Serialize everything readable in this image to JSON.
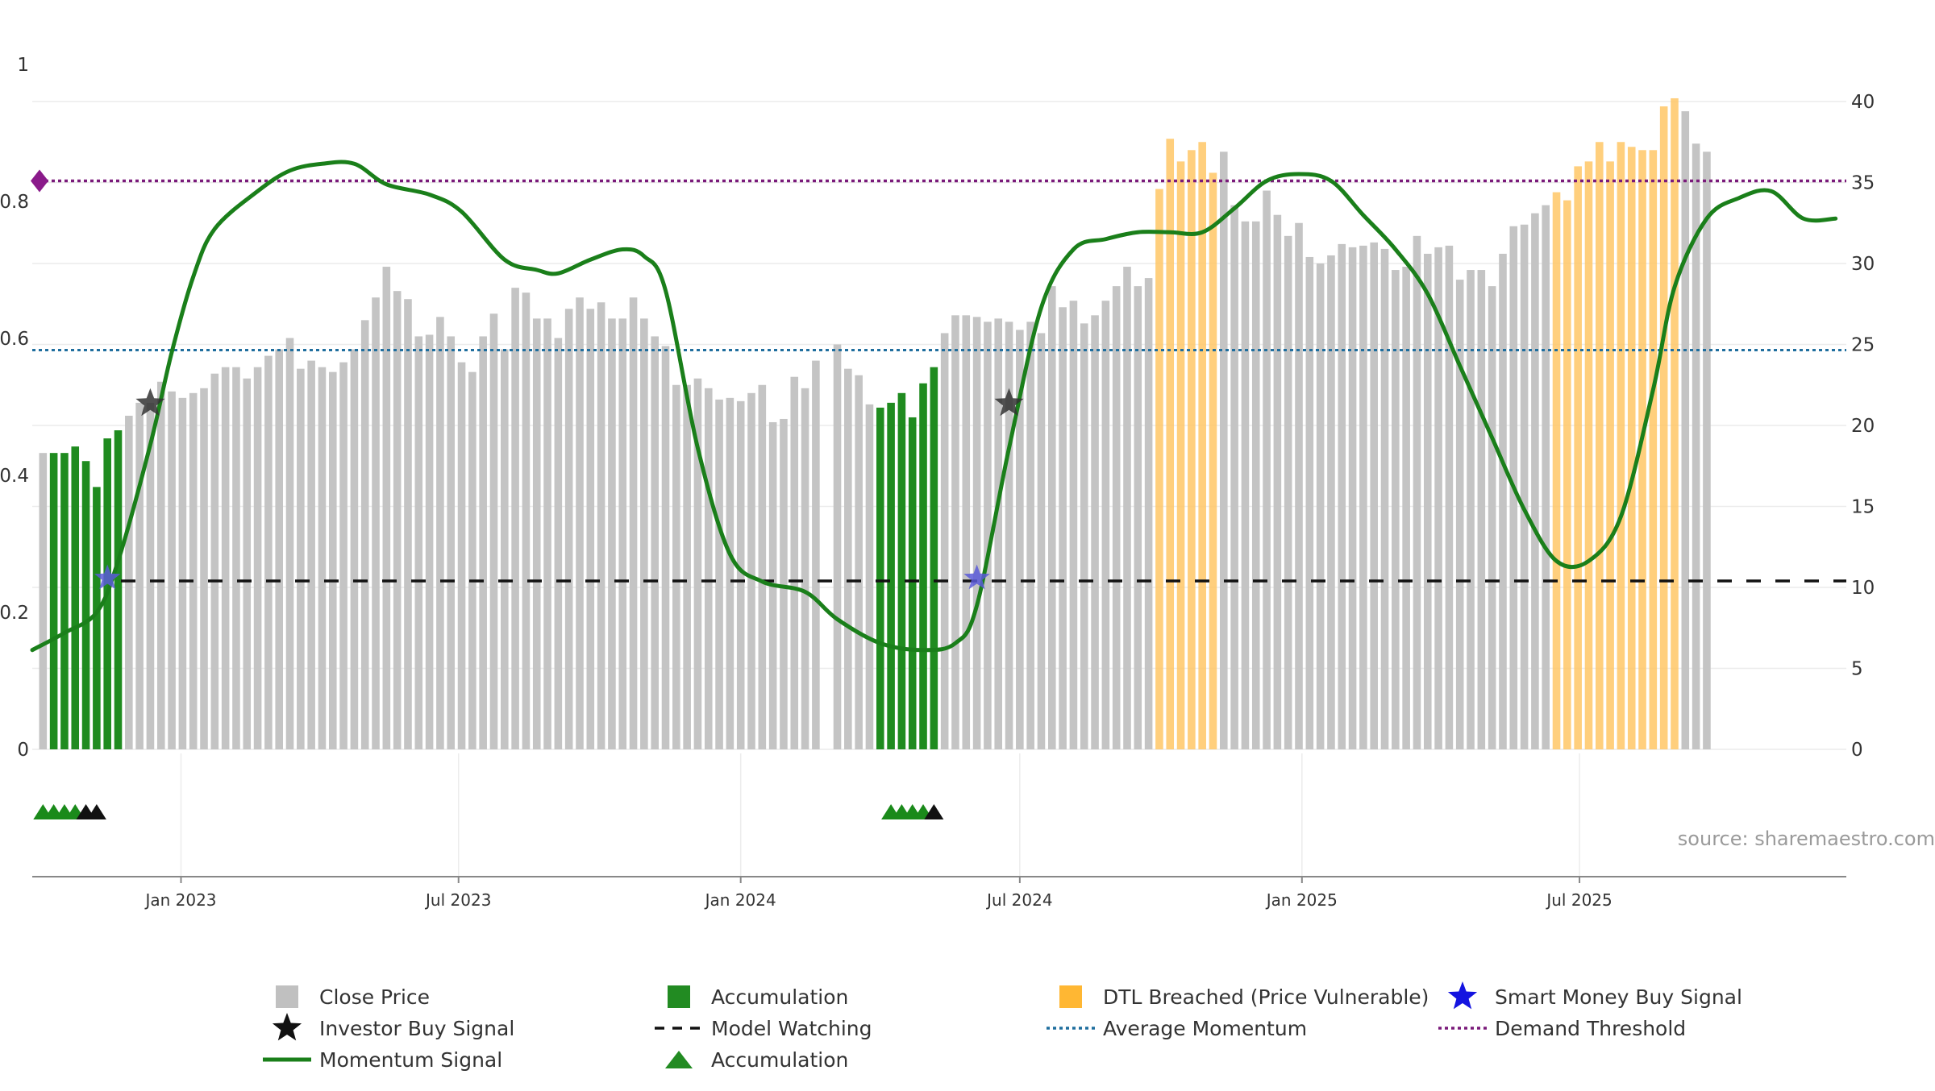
{
  "chart_data": {
    "type": "bar",
    "title": "",
    "xlabel": "",
    "ylabel": "",
    "source": "source: sharemaestro.com",
    "x_date_range": [
      "2022-09-26",
      "2025-09-01"
    ],
    "x_ticks": [
      {
        "date": "2023-01-01",
        "label": "Jan 2023"
      },
      {
        "date": "2023-07-01",
        "label": "Jul 2023"
      },
      {
        "date": "2024-01-01",
        "label": "Jan 2024"
      },
      {
        "date": "2024-07-01",
        "label": "Jul 2024"
      },
      {
        "date": "2025-01-01",
        "label": "Jan 2025"
      },
      {
        "date": "2025-07-01",
        "label": "Jul 2025"
      }
    ],
    "left_axis": {
      "ylim": [
        0,
        1
      ],
      "ticks": [
        0,
        0.2,
        0.4,
        0.6,
        0.8,
        1
      ]
    },
    "right_axis": {
      "ylim": [
        0,
        40
      ],
      "ticks": [
        0,
        5,
        10,
        15,
        20,
        25,
        30,
        35,
        40
      ]
    },
    "grid": "horizontal",
    "legend": {
      "placement": "bottom",
      "items": [
        {
          "label": "Close Price",
          "symbol": "square",
          "color": "#c0c0c0"
        },
        {
          "label": "Accumulation",
          "symbol": "square",
          "color": "#228b22"
        },
        {
          "label": "DTL Breached (Price Vulnerable)",
          "symbol": "square",
          "color": "#ffb733"
        },
        {
          "label": "Smart Money Buy Signal",
          "symbol": "star",
          "color": "#1414e0"
        },
        {
          "label": "Investor Buy Signal",
          "symbol": "star",
          "color": "#111111"
        },
        {
          "label": "Model Watching",
          "symbol": "dash",
          "color": "#111111"
        },
        {
          "label": "Average Momentum",
          "symbol": "dot",
          "color": "#1f6e9e"
        },
        {
          "label": "Demand Threshold",
          "symbol": "dot",
          "color": "#7a1a7a"
        },
        {
          "label": "Momentum Signal",
          "symbol": "line",
          "color": "#1a7f1a"
        },
        {
          "label": "Accumulation",
          "symbol": "triangle",
          "color": "#228b22"
        }
      ]
    },
    "close_price": {
      "axis": "right",
      "start_date": "2022-10-03",
      "interval_days": 7,
      "values": [
        18.3,
        18.3,
        18.3,
        18.7,
        17.8,
        16.2,
        19.2,
        19.7,
        20.6,
        21.4,
        21.4,
        22.7,
        22.1,
        21.7,
        22.0,
        22.3,
        23.2,
        23.6,
        23.6,
        22.9,
        23.6,
        24.3,
        24.7,
        25.4,
        23.5,
        24.0,
        23.6,
        23.3,
        23.9,
        24.7,
        26.5,
        27.9,
        29.8,
        28.3,
        27.8,
        25.5,
        25.6,
        26.7,
        25.5,
        23.9,
        23.3,
        25.5,
        26.9,
        24.7,
        28.5,
        28.2,
        26.6,
        26.6,
        25.4,
        27.2,
        27.9,
        27.2,
        27.6,
        26.6,
        26.6,
        27.9,
        26.6,
        25.5,
        24.9,
        22.5,
        22.5,
        22.9,
        22.3,
        21.6,
        21.7,
        21.5,
        22.0,
        22.5,
        20.2,
        20.4,
        23.0,
        22.3,
        24.0,
        0,
        25.0,
        23.5,
        23.1,
        21.3,
        21.1,
        21.4,
        22.0,
        20.5,
        22.6,
        23.6,
        25.7,
        26.8,
        26.8,
        26.7,
        26.4,
        26.6,
        26.4,
        25.9,
        26.4,
        25.7,
        28.6,
        27.3,
        27.7,
        26.3,
        26.8,
        27.7,
        28.6,
        29.8,
        28.6,
        29.1,
        34.6,
        37.7,
        36.3,
        37.0,
        37.5,
        35.6,
        36.9,
        33.6,
        32.6,
        32.6,
        34.5,
        33.0,
        31.7,
        32.5,
        30.4,
        30.0,
        30.5,
        31.2,
        31.0,
        31.1,
        31.3,
        30.9,
        29.6,
        29.8,
        31.7,
        30.6,
        31.0,
        31.1,
        29.0,
        29.6,
        29.6,
        28.6,
        30.6,
        32.3,
        32.4,
        33.1,
        33.6,
        34.4,
        33.9,
        36.0,
        36.3,
        37.5,
        36.3,
        37.5,
        37.2,
        37.0,
        37.0,
        39.7,
        40.2,
        39.4,
        37.4,
        36.9
      ],
      "accumulation_ranges": [
        [
          1,
          7
        ],
        [
          78,
          83
        ]
      ],
      "dtl_breached_ranges": [
        [
          104,
          109
        ],
        [
          141,
          152
        ]
      ]
    },
    "momentum_signal": {
      "axis": "left",
      "points": [
        {
          "x": "2022-09-26",
          "y": 0.145
        },
        {
          "x": "2022-10-17",
          "y": 0.17
        },
        {
          "x": "2022-11-07",
          "y": 0.2
        },
        {
          "x": "2022-11-21",
          "y": 0.275
        },
        {
          "x": "2022-12-12",
          "y": 0.445
        },
        {
          "x": "2022-12-26",
          "y": 0.58
        },
        {
          "x": "2023-01-09",
          "y": 0.69
        },
        {
          "x": "2023-01-23",
          "y": 0.76
        },
        {
          "x": "2023-02-20",
          "y": 0.815
        },
        {
          "x": "2023-03-13",
          "y": 0.845
        },
        {
          "x": "2023-04-03",
          "y": 0.855
        },
        {
          "x": "2023-04-24",
          "y": 0.855
        },
        {
          "x": "2023-05-15",
          "y": 0.825
        },
        {
          "x": "2023-06-12",
          "y": 0.81
        },
        {
          "x": "2023-07-03",
          "y": 0.785
        },
        {
          "x": "2023-07-31",
          "y": 0.715
        },
        {
          "x": "2023-08-21",
          "y": 0.7
        },
        {
          "x": "2023-09-04",
          "y": 0.695
        },
        {
          "x": "2023-09-25",
          "y": 0.715
        },
        {
          "x": "2023-10-16",
          "y": 0.73
        },
        {
          "x": "2023-10-30",
          "y": 0.72
        },
        {
          "x": "2023-11-13",
          "y": 0.67
        },
        {
          "x": "2023-12-04",
          "y": 0.44
        },
        {
          "x": "2023-12-25",
          "y": 0.285
        },
        {
          "x": "2024-01-15",
          "y": 0.245
        },
        {
          "x": "2024-02-12",
          "y": 0.23
        },
        {
          "x": "2024-03-04",
          "y": 0.19
        },
        {
          "x": "2024-04-01",
          "y": 0.155
        },
        {
          "x": "2024-04-29",
          "y": 0.145
        },
        {
          "x": "2024-05-20",
          "y": 0.155
        },
        {
          "x": "2024-06-03",
          "y": 0.21
        },
        {
          "x": "2024-06-24",
          "y": 0.44
        },
        {
          "x": "2024-07-15",
          "y": 0.645
        },
        {
          "x": "2024-08-05",
          "y": 0.73
        },
        {
          "x": "2024-08-26",
          "y": 0.745
        },
        {
          "x": "2024-09-16",
          "y": 0.755
        },
        {
          "x": "2024-10-07",
          "y": 0.755
        },
        {
          "x": "2024-10-28",
          "y": 0.755
        },
        {
          "x": "2024-11-18",
          "y": 0.79
        },
        {
          "x": "2024-12-09",
          "y": 0.83
        },
        {
          "x": "2024-12-30",
          "y": 0.84
        },
        {
          "x": "2025-01-20",
          "y": 0.83
        },
        {
          "x": "2025-02-10",
          "y": 0.78
        },
        {
          "x": "2025-03-03",
          "y": 0.73
        },
        {
          "x": "2025-03-24",
          "y": 0.665
        },
        {
          "x": "2025-04-14",
          "y": 0.56
        },
        {
          "x": "2025-05-05",
          "y": 0.455
        },
        {
          "x": "2025-05-26",
          "y": 0.35
        },
        {
          "x": "2025-06-16",
          "y": 0.275
        },
        {
          "x": "2025-07-07",
          "y": 0.275
        },
        {
          "x": "2025-07-28",
          "y": 0.34
        },
        {
          "x": "2025-08-18",
          "y": 0.525
        },
        {
          "x": "2025-09-01",
          "y": 0.675
        },
        {
          "x": "2025-09-22",
          "y": 0.775
        },
        {
          "x": "2025-10-13",
          "y": 0.805
        },
        {
          "x": "2025-11-03",
          "y": 0.815
        },
        {
          "x": "2025-11-24",
          "y": 0.775
        },
        {
          "x": "2025-12-15",
          "y": 0.775
        }
      ]
    },
    "model_watching": {
      "axis": "right",
      "value": 10.4
    },
    "average_momentum": {
      "axis": "left",
      "value": 0.583
    },
    "demand_threshold": {
      "axis": "left",
      "value": 0.83
    },
    "investor_buy_signals": [
      {
        "x": "2022-12-12",
        "y": 0.505
      },
      {
        "x": "2024-06-24",
        "y": 0.505
      }
    ],
    "smart_money_buy_signals": [
      {
        "x": "2022-11-14",
        "y": 0.25
      },
      {
        "x": "2024-06-03",
        "y": 0.25
      }
    ],
    "accumulation_markers": [
      {
        "x": "2022-10-03",
        "color": "green"
      },
      {
        "x": "2022-10-10",
        "color": "green"
      },
      {
        "x": "2022-10-17",
        "color": "green"
      },
      {
        "x": "2022-10-24",
        "color": "green"
      },
      {
        "x": "2022-10-31",
        "color": "black"
      },
      {
        "x": "2022-11-07",
        "color": "black"
      },
      {
        "x": "2024-04-08",
        "color": "green"
      },
      {
        "x": "2024-04-15",
        "color": "green"
      },
      {
        "x": "2024-04-22",
        "color": "green"
      },
      {
        "x": "2024-04-29",
        "color": "green"
      },
      {
        "x": "2024-05-06",
        "color": "black"
      }
    ]
  }
}
